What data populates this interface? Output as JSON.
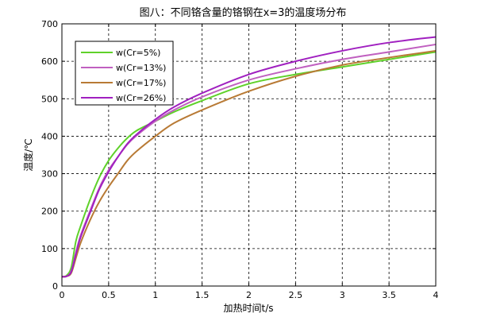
{
  "chart_data": {
    "type": "line",
    "title": "图八：不同铬含量的铬钢在x=3的温度场分布",
    "xlabel": "加热时间t/s",
    "ylabel": "温度/℃",
    "xlim": [
      0,
      4
    ],
    "ylim": [
      0,
      700
    ],
    "xticks": [
      0,
      0.5,
      1,
      1.5,
      2,
      2.5,
      3,
      3.5,
      4
    ],
    "yticks": [
      0,
      100,
      200,
      300,
      400,
      500,
      600,
      700
    ],
    "xtick_labels": [
      "0",
      "0.5",
      "1",
      "1.5",
      "2",
      "2.5",
      "3",
      "3.5",
      "4"
    ],
    "ytick_labels": [
      "0",
      "100",
      "200",
      "300",
      "400",
      "500",
      "600",
      "700"
    ],
    "grid": true,
    "legend_position": "top-left",
    "x": [
      0,
      0.05,
      0.1,
      0.15,
      0.2,
      0.3,
      0.4,
      0.5,
      0.6,
      0.7,
      0.8,
      1.0,
      1.2,
      1.5,
      2.0,
      2.5,
      3.0,
      3.5,
      4.0
    ],
    "series": [
      {
        "name": "w(Cr=5%)",
        "color": "#5fd12a",
        "values": [
          25,
          28,
          50,
          120,
          160,
          230,
          290,
          335,
          368,
          395,
          415,
          440,
          465,
          495,
          540,
          565,
          585,
          605,
          625
        ]
      },
      {
        "name": "w(Cr=13%)",
        "color": "#c060c0",
        "values": [
          25,
          26,
          40,
          90,
          135,
          200,
          262,
          310,
          345,
          378,
          402,
          440,
          470,
          505,
          550,
          580,
          605,
          625,
          645
        ]
      },
      {
        "name": "w(Cr=17%)",
        "color": "#b87a35",
        "values": [
          25,
          26,
          35,
          75,
          115,
          175,
          225,
          265,
          300,
          335,
          360,
          400,
          435,
          470,
          520,
          560,
          590,
          610,
          628
        ]
      },
      {
        "name": "w(Cr=26%)",
        "color": "#a020c0",
        "values": [
          25,
          26,
          38,
          85,
          130,
          195,
          258,
          305,
          345,
          380,
          405,
          445,
          478,
          515,
          565,
          600,
          628,
          650,
          665
        ]
      }
    ]
  },
  "colors": {
    "axis": "#000000",
    "grid": "#000000",
    "background": "#ffffff"
  }
}
